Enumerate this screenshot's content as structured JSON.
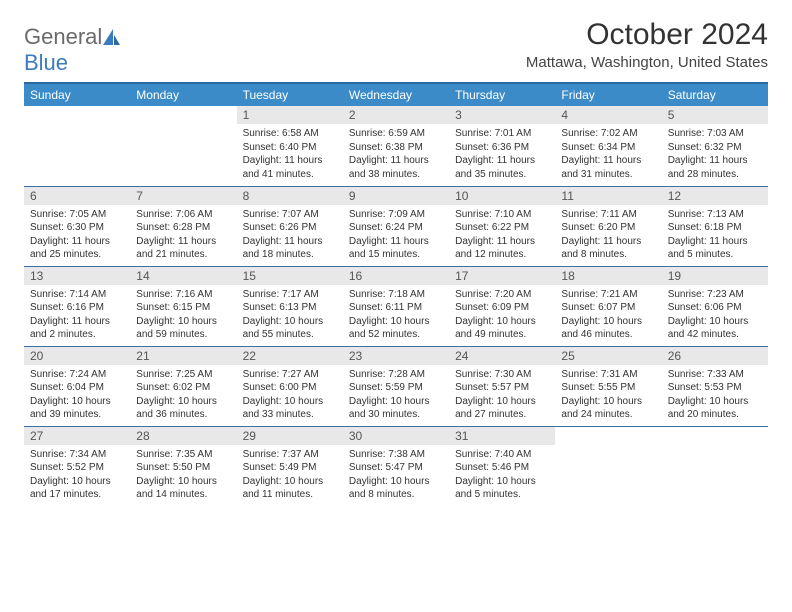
{
  "logo": {
    "text1": "General",
    "text2": "Blue"
  },
  "title": "October 2024",
  "location": "Mattawa, Washington, United States",
  "colors": {
    "header_bg": "#3b8bc9",
    "header_border": "#2a6aa0",
    "daynum_bg": "#e8e8e8",
    "row_border": "#3b6fa0",
    "logo_gray": "#6b6b6b",
    "logo_blue": "#3b7bbf"
  },
  "weekdays": [
    "Sunday",
    "Monday",
    "Tuesday",
    "Wednesday",
    "Thursday",
    "Friday",
    "Saturday"
  ],
  "weeks": [
    [
      null,
      null,
      {
        "n": "1",
        "sr": "6:58 AM",
        "ss": "6:40 PM",
        "dl": "11 hours and 41 minutes."
      },
      {
        "n": "2",
        "sr": "6:59 AM",
        "ss": "6:38 PM",
        "dl": "11 hours and 38 minutes."
      },
      {
        "n": "3",
        "sr": "7:01 AM",
        "ss": "6:36 PM",
        "dl": "11 hours and 35 minutes."
      },
      {
        "n": "4",
        "sr": "7:02 AM",
        "ss": "6:34 PM",
        "dl": "11 hours and 31 minutes."
      },
      {
        "n": "5",
        "sr": "7:03 AM",
        "ss": "6:32 PM",
        "dl": "11 hours and 28 minutes."
      }
    ],
    [
      {
        "n": "6",
        "sr": "7:05 AM",
        "ss": "6:30 PM",
        "dl": "11 hours and 25 minutes."
      },
      {
        "n": "7",
        "sr": "7:06 AM",
        "ss": "6:28 PM",
        "dl": "11 hours and 21 minutes."
      },
      {
        "n": "8",
        "sr": "7:07 AM",
        "ss": "6:26 PM",
        "dl": "11 hours and 18 minutes."
      },
      {
        "n": "9",
        "sr": "7:09 AM",
        "ss": "6:24 PM",
        "dl": "11 hours and 15 minutes."
      },
      {
        "n": "10",
        "sr": "7:10 AM",
        "ss": "6:22 PM",
        "dl": "11 hours and 12 minutes."
      },
      {
        "n": "11",
        "sr": "7:11 AM",
        "ss": "6:20 PM",
        "dl": "11 hours and 8 minutes."
      },
      {
        "n": "12",
        "sr": "7:13 AM",
        "ss": "6:18 PM",
        "dl": "11 hours and 5 minutes."
      }
    ],
    [
      {
        "n": "13",
        "sr": "7:14 AM",
        "ss": "6:16 PM",
        "dl": "11 hours and 2 minutes."
      },
      {
        "n": "14",
        "sr": "7:16 AM",
        "ss": "6:15 PM",
        "dl": "10 hours and 59 minutes."
      },
      {
        "n": "15",
        "sr": "7:17 AM",
        "ss": "6:13 PM",
        "dl": "10 hours and 55 minutes."
      },
      {
        "n": "16",
        "sr": "7:18 AM",
        "ss": "6:11 PM",
        "dl": "10 hours and 52 minutes."
      },
      {
        "n": "17",
        "sr": "7:20 AM",
        "ss": "6:09 PM",
        "dl": "10 hours and 49 minutes."
      },
      {
        "n": "18",
        "sr": "7:21 AM",
        "ss": "6:07 PM",
        "dl": "10 hours and 46 minutes."
      },
      {
        "n": "19",
        "sr": "7:23 AM",
        "ss": "6:06 PM",
        "dl": "10 hours and 42 minutes."
      }
    ],
    [
      {
        "n": "20",
        "sr": "7:24 AM",
        "ss": "6:04 PM",
        "dl": "10 hours and 39 minutes."
      },
      {
        "n": "21",
        "sr": "7:25 AM",
        "ss": "6:02 PM",
        "dl": "10 hours and 36 minutes."
      },
      {
        "n": "22",
        "sr": "7:27 AM",
        "ss": "6:00 PM",
        "dl": "10 hours and 33 minutes."
      },
      {
        "n": "23",
        "sr": "7:28 AM",
        "ss": "5:59 PM",
        "dl": "10 hours and 30 minutes."
      },
      {
        "n": "24",
        "sr": "7:30 AM",
        "ss": "5:57 PM",
        "dl": "10 hours and 27 minutes."
      },
      {
        "n": "25",
        "sr": "7:31 AM",
        "ss": "5:55 PM",
        "dl": "10 hours and 24 minutes."
      },
      {
        "n": "26",
        "sr": "7:33 AM",
        "ss": "5:53 PM",
        "dl": "10 hours and 20 minutes."
      }
    ],
    [
      {
        "n": "27",
        "sr": "7:34 AM",
        "ss": "5:52 PM",
        "dl": "10 hours and 17 minutes."
      },
      {
        "n": "28",
        "sr": "7:35 AM",
        "ss": "5:50 PM",
        "dl": "10 hours and 14 minutes."
      },
      {
        "n": "29",
        "sr": "7:37 AM",
        "ss": "5:49 PM",
        "dl": "10 hours and 11 minutes."
      },
      {
        "n": "30",
        "sr": "7:38 AM",
        "ss": "5:47 PM",
        "dl": "10 hours and 8 minutes."
      },
      {
        "n": "31",
        "sr": "7:40 AM",
        "ss": "5:46 PM",
        "dl": "10 hours and 5 minutes."
      },
      null,
      null
    ]
  ],
  "labels": {
    "sunrise": "Sunrise: ",
    "sunset": "Sunset: ",
    "daylight": "Daylight: "
  }
}
